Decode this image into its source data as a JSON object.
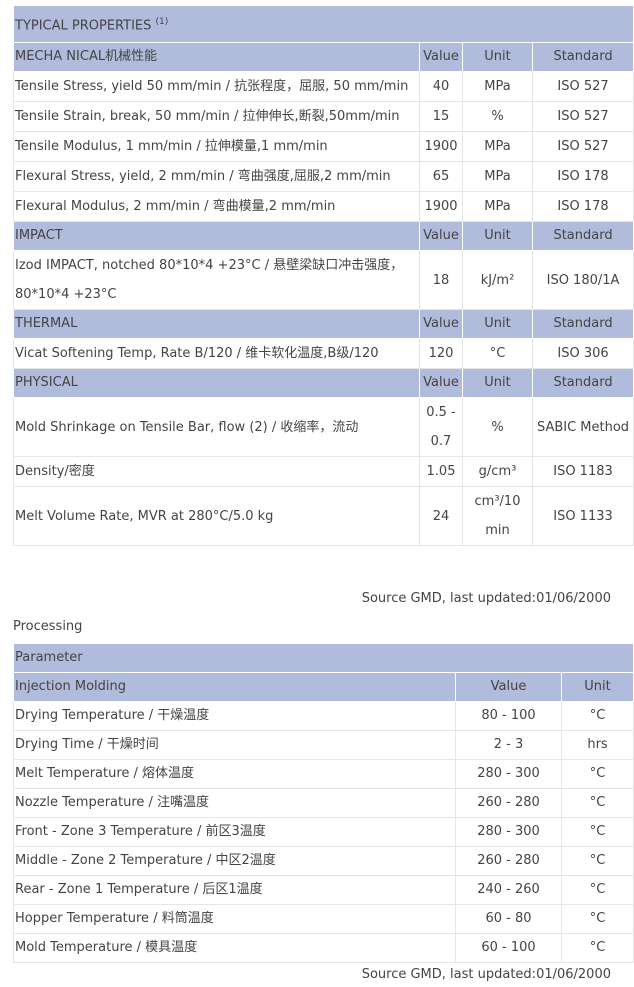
{
  "properties": {
    "title": "TYPICAL PROPERTIES",
    "title_note": "(1)",
    "columns": {
      "value": "Value",
      "unit": "Unit",
      "standard": "Standard"
    },
    "sections": [
      {
        "name": "MECHA NICAL机械性能",
        "rows": [
          {
            "label": "Tensile Stress, yield 50 mm/min / 抗张程度，屈服, 50 mm/min",
            "value": "40",
            "unit": "MPa",
            "standard": "ISO 527"
          },
          {
            "label": "Tensile Strain, break, 50 mm/min / 拉伸伸长,断裂,50mm/min",
            "value": "15",
            "unit": "%",
            "standard": "ISO 527"
          },
          {
            "label": "Tensile Modulus, 1 mm/min / 拉伸模量,1 mm/min",
            "value": "1900",
            "unit": "MPa",
            "standard": "ISO 527"
          },
          {
            "label": "Flexural Stress, yield, 2 mm/min / 弯曲强度,屈服,2 mm/min",
            "value": "65",
            "unit": "MPa",
            "standard": "ISO 178"
          },
          {
            "label": "Flexural Modulus, 2 mm/min / 弯曲模量,2 mm/min",
            "value": "1900",
            "unit": "MPa",
            "standard": "ISO 178"
          }
        ]
      },
      {
        "name": "IMPACT",
        "rows": [
          {
            "label": "Izod IMPACT, notched 80*10*4 +23°C / 悬壁梁缺口冲击强度，80*10*4 +23°C",
            "value": "18",
            "unit": "kJ/m²",
            "standard": "ISO 180/1A"
          }
        ]
      },
      {
        "name": "THERMAL",
        "rows": [
          {
            "label": "Vicat Softening Temp, Rate B/120 / 维卡软化温度,B级/120",
            "value": "120",
            "unit": "°C",
            "standard": "ISO 306"
          }
        ]
      },
      {
        "name": "PHYSICAL",
        "rows": [
          {
            "label": "Mold Shrinkage on Tensile Bar, flow (2) / 收缩率，流动",
            "value": "0.5 - 0.7",
            "unit": "%",
            "standard": "SABIC Method"
          },
          {
            "label": "Density/密度",
            "value": "1.05",
            "unit": "g/cm³",
            "standard": "ISO 1183"
          },
          {
            "label": "Melt Volume Rate, MVR at 280°C/5.0 kg",
            "value": "24",
            "unit": "cm³/10 min",
            "standard": "ISO 1133"
          }
        ]
      }
    ],
    "source": "Source GMD, last updated:01/06/2000"
  },
  "processing": {
    "heading": "Processing",
    "parameter_label": "Parameter",
    "section": "Injection Molding",
    "columns": {
      "value": "Value",
      "unit": "Unit"
    },
    "rows": [
      {
        "label": "Drying Temperature / 干燥温度",
        "value": "80 - 100",
        "unit": "°C"
      },
      {
        "label": "Drying Time / 干燥时间",
        "value": "2 - 3",
        "unit": "hrs"
      },
      {
        "label": "Melt Temperature / 熔体温度",
        "value": "280 - 300",
        "unit": "°C"
      },
      {
        "label": "Nozzle Temperature / 注嘴温度",
        "value": "260 - 280",
        "unit": "°C"
      },
      {
        "label": "Front - Zone 3 Temperature / 前区3温度",
        "value": "280 - 300",
        "unit": "°C"
      },
      {
        "label": "Middle - Zone 2 Temperature / 中区2温度",
        "value": "260 - 280",
        "unit": "°C"
      },
      {
        "label": "Rear - Zone 1 Temperature / 后区1温度",
        "value": "240 - 260",
        "unit": "°C"
      },
      {
        "label": "Hopper Temperature / 料筒温度",
        "value": "60 - 80",
        "unit": "°C"
      },
      {
        "label": "Mold Temperature / 模具温度",
        "value": "60 - 100",
        "unit": "°C"
      }
    ],
    "source": "Source GMD, last updated:01/06/2000"
  },
  "colors": {
    "header_bg": "#b1bcdc",
    "text": "#444444"
  }
}
